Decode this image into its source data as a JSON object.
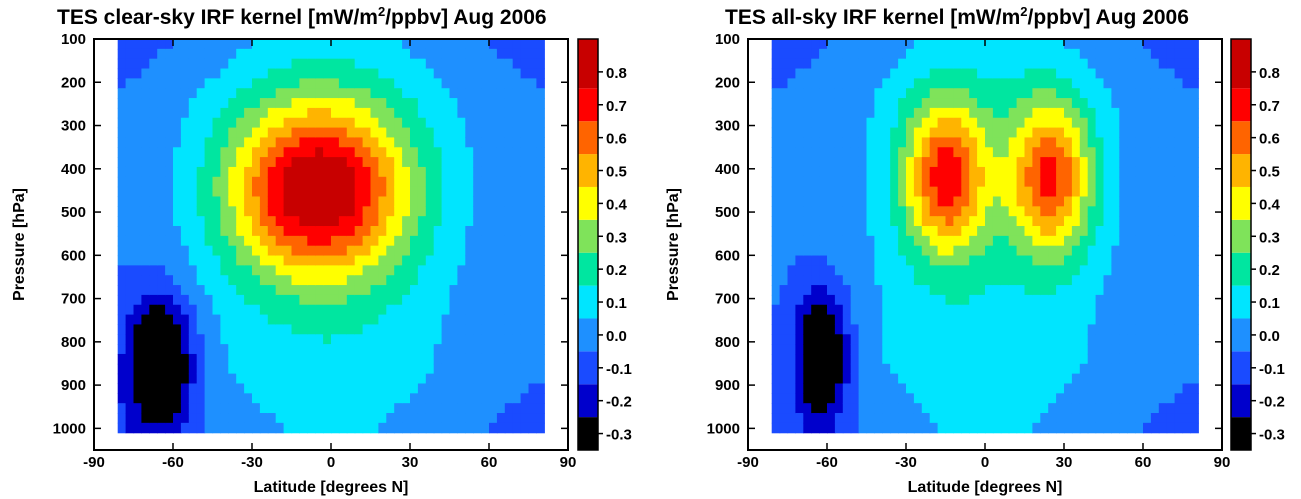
{
  "colors": {
    "levels": [
      "#000000",
      "#0000cc",
      "#1a4bff",
      "#1e90ff",
      "#00e5ff",
      "#00e6a0",
      "#7fe35a",
      "#ffff00",
      "#ffb400",
      "#ff6400",
      "#ff0000",
      "#c80000"
    ],
    "mask": "#ffffff",
    "axis": "#000000"
  },
  "chart_data": [
    {
      "type": "heatmap",
      "title_prefix": "TES clear-sky IRF kernel [mW/m",
      "title_sup": "2",
      "title_suffix": "/ppbv] Aug 2006",
      "xlabel": "Latitude [degrees N]",
      "ylabel": "Pressure [hPa]",
      "xlim": [
        -90,
        90
      ],
      "ylim": [
        100,
        1050
      ],
      "y_inverted": true,
      "xticks": [
        -90,
        -60,
        -30,
        0,
        30,
        60,
        90
      ],
      "yticks": [
        100,
        200,
        300,
        400,
        500,
        600,
        700,
        800,
        900,
        1000
      ],
      "data_lat_range": [
        -81,
        81
      ],
      "colorbar_ticks": [
        -0.3,
        -0.2,
        -0.1,
        0.0,
        0.1,
        0.2,
        0.3,
        0.4,
        0.5,
        0.6,
        0.7,
        0.8
      ],
      "colorbar_tick_labels": [
        "-0.3",
        "-0.2",
        "-0.1",
        "0.0",
        "0.1",
        "0.2",
        "0.3",
        "0.4",
        "0.5",
        "0.6",
        "0.7",
        "0.8"
      ],
      "colorbar_range": [
        -0.35,
        0.9
      ],
      "lobes": [
        {
          "lat": -5,
          "pressure": 450,
          "peak": 0.78,
          "lat_width": 34,
          "p_width": 200
        },
        {
          "lat": -65,
          "pressure": 850,
          "peak": -0.5,
          "lat_width": 12,
          "p_width": 150
        }
      ]
    },
    {
      "type": "heatmap",
      "title_prefix": "TES all-sky IRF kernel [mW/m",
      "title_sup": "2",
      "title_suffix": "/ppbv] Aug 2006",
      "xlabel": "Latitude [degrees N]",
      "ylabel": "Pressure [hPa]",
      "xlim": [
        -90,
        90
      ],
      "ylim": [
        100,
        1050
      ],
      "y_inverted": true,
      "xticks": [
        -90,
        -60,
        -30,
        0,
        30,
        60,
        90
      ],
      "yticks": [
        100,
        200,
        300,
        400,
        500,
        600,
        700,
        800,
        900,
        1000
      ],
      "data_lat_range": [
        -81,
        81
      ],
      "colorbar_ticks": [
        -0.3,
        -0.2,
        -0.1,
        0.0,
        0.1,
        0.2,
        0.3,
        0.4,
        0.5,
        0.6,
        0.7,
        0.8
      ],
      "colorbar_tick_labels": [
        "-0.3",
        "-0.2",
        "-0.1",
        "0.0",
        "0.1",
        "0.2",
        "0.3",
        "0.4",
        "0.5",
        "0.6",
        "0.7",
        "0.8"
      ],
      "colorbar_range": [
        -0.35,
        0.9
      ],
      "lobes": [
        {
          "lat": -15,
          "pressure": 420,
          "peak": 0.62,
          "lat_width": 16,
          "p_width": 180
        },
        {
          "lat": 25,
          "pressure": 420,
          "peak": 0.6,
          "lat_width": 16,
          "p_width": 180
        },
        {
          "lat": -62,
          "pressure": 830,
          "peak": -0.45,
          "lat_width": 10,
          "p_width": 150
        }
      ]
    }
  ]
}
